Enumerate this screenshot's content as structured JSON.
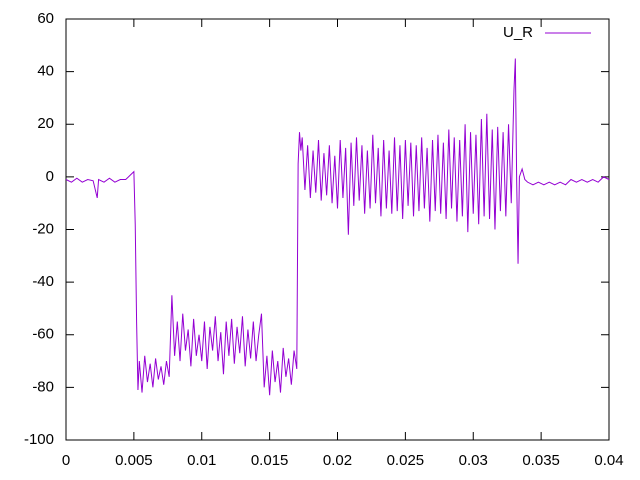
{
  "chart_data": {
    "type": "line",
    "x": [
      0,
      0.0004,
      0.0008,
      0.0012,
      0.0016,
      0.002,
      0.0023,
      0.0024,
      0.0028,
      0.0032,
      0.0036,
      0.004,
      0.0044,
      0.0048,
      0.005,
      0.0051,
      0.0052,
      0.0053,
      0.0054,
      0.0056,
      0.0058,
      0.006,
      0.0062,
      0.0064,
      0.0066,
      0.0068,
      0.007,
      0.0072,
      0.0074,
      0.0076,
      0.0078,
      0.008,
      0.0082,
      0.0084,
      0.0086,
      0.0088,
      0.009,
      0.0092,
      0.0094,
      0.0096,
      0.0098,
      0.01,
      0.0102,
      0.0104,
      0.0106,
      0.0108,
      0.011,
      0.0112,
      0.0114,
      0.0116,
      0.0118,
      0.012,
      0.0122,
      0.0124,
      0.0126,
      0.0128,
      0.013,
      0.0132,
      0.0134,
      0.0136,
      0.0138,
      0.014,
      0.0142,
      0.0144,
      0.0146,
      0.0148,
      0.015,
      0.0152,
      0.0154,
      0.0156,
      0.0158,
      0.016,
      0.0162,
      0.0164,
      0.0166,
      0.0168,
      0.017,
      0.0171,
      0.0172,
      0.0173,
      0.0174,
      0.0176,
      0.0178,
      0.018,
      0.0182,
      0.0184,
      0.0186,
      0.0188,
      0.019,
      0.0192,
      0.0194,
      0.0196,
      0.0198,
      0.02,
      0.0202,
      0.0204,
      0.0206,
      0.0208,
      0.021,
      0.0212,
      0.0214,
      0.0216,
      0.0218,
      0.022,
      0.0222,
      0.0224,
      0.0226,
      0.0228,
      0.023,
      0.0232,
      0.0234,
      0.0236,
      0.0238,
      0.024,
      0.0242,
      0.0244,
      0.0246,
      0.0248,
      0.025,
      0.0252,
      0.0254,
      0.0256,
      0.0258,
      0.026,
      0.0262,
      0.0264,
      0.0266,
      0.0268,
      0.027,
      0.0272,
      0.0274,
      0.0276,
      0.0278,
      0.028,
      0.0282,
      0.0284,
      0.0286,
      0.0288,
      0.029,
      0.0292,
      0.0294,
      0.0296,
      0.0298,
      0.03,
      0.0302,
      0.0304,
      0.0306,
      0.0308,
      0.031,
      0.0312,
      0.0314,
      0.0316,
      0.0318,
      0.032,
      0.0322,
      0.0324,
      0.0326,
      0.0328,
      0.033,
      0.0331,
      0.0332,
      0.0333,
      0.0334,
      0.0336,
      0.0338,
      0.034,
      0.0344,
      0.0348,
      0.0352,
      0.0356,
      0.036,
      0.0364,
      0.0368,
      0.0372,
      0.0376,
      0.038,
      0.0384,
      0.0388,
      0.0392,
      0.0396,
      0.04
    ],
    "series": [
      {
        "name": "U_R",
        "color": "#9400d3",
        "values": [
          -1,
          -2,
          -0.5,
          -2,
          -1,
          -1.5,
          -8,
          -1,
          -2,
          -0.5,
          -2,
          -1,
          -1,
          1,
          2,
          -18,
          -55,
          -81,
          -70,
          -82,
          -68,
          -78,
          -71,
          -80,
          -69,
          -77,
          -72,
          -79,
          -70,
          -76,
          -45,
          -68,
          -55,
          -70,
          -52,
          -66,
          -58,
          -72,
          -54,
          -68,
          -60,
          -70,
          -55,
          -73,
          -57,
          -66,
          -53,
          -70,
          -59,
          -75,
          -55,
          -68,
          -54,
          -71,
          -57,
          -67,
          -53,
          -72,
          -58,
          -69,
          -55,
          -70,
          -60,
          -52,
          -80,
          -68,
          -83,
          -66,
          -78,
          -70,
          -82,
          -65,
          -76,
          -69,
          -79,
          -66,
          -73,
          5,
          17,
          10,
          15,
          -5,
          12,
          -8,
          10,
          -6,
          14,
          -9,
          9,
          -7,
          12,
          -10,
          8,
          -12,
          14,
          -8,
          11,
          -22,
          13,
          -11,
          15,
          -9,
          12,
          -14,
          10,
          -12,
          16,
          -10,
          11,
          -15,
          14,
          -12,
          10,
          -14,
          15,
          -13,
          12,
          -16,
          14,
          -11,
          13,
          -15,
          12,
          -13,
          15,
          -12,
          11,
          -17,
          14,
          -13,
          16,
          -14,
          13,
          -16,
          18,
          -12,
          15,
          -17,
          14,
          -15,
          20,
          -21,
          17,
          -14,
          16,
          -18,
          22,
          -15,
          24,
          -16,
          18,
          -20,
          19,
          -13,
          17,
          -15,
          20,
          -10,
          33,
          45,
          -2,
          -33,
          0,
          3,
          -1,
          -2,
          -3,
          -2,
          -3,
          -2,
          -3,
          -2,
          -3,
          -1,
          -2,
          -1,
          -2,
          -1,
          -2,
          0,
          -1
        ]
      }
    ],
    "xlim": [
      0,
      0.04
    ],
    "xticks": [
      0,
      0.005,
      0.01,
      0.015,
      0.02,
      0.025,
      0.03,
      0.035,
      0.04
    ],
    "ylim": [
      -100,
      60
    ],
    "yticks": [
      -100,
      -80,
      -60,
      -40,
      -20,
      0,
      20,
      40,
      60
    ],
    "legend": "top-right"
  }
}
